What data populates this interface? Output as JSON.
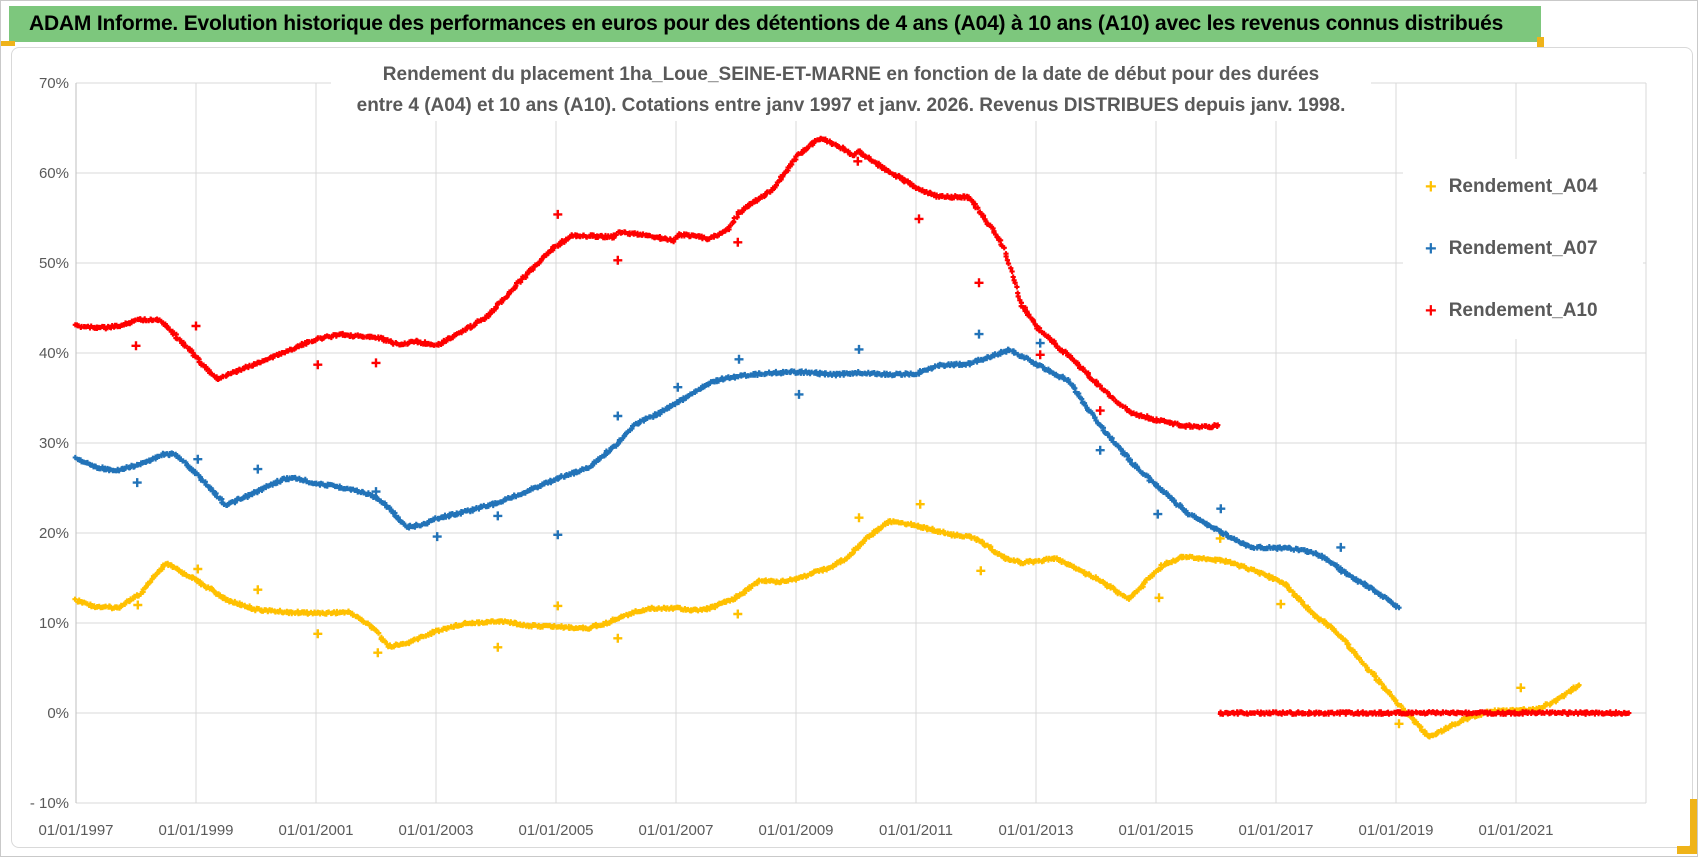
{
  "banner": {
    "title": "ADAM Informe. Evolution historique des performances en euros pour des détentions de 4 ans (A04) à 10 ans (A10) avec les revenus connus distribués"
  },
  "colors": {
    "banner_green": "#7DC77D",
    "accent_gold": "#EFB319",
    "grid": "#D9D9D9",
    "axis": "#BFBFBF",
    "text_gray": "#595959",
    "a04": "#FFC000",
    "a07": "#2273B8",
    "a10": "#FE0000"
  },
  "chart_data": {
    "type": "scatter",
    "marker": "plus",
    "title_line1": "Rendement du placement 1ha_Loue_SEINE-ET-MARNE  en fonction de la date de début pour des durées",
    "title_line2": "entre 4 (A04) et 10 ans (A10). Cotations entre janv 1997 et janv. 2026. Revenus DISTRIBUES depuis janv. 1998.",
    "legend_position": "right",
    "grid": true,
    "ylim": [
      -10,
      70
    ],
    "xlim_years": [
      1997,
      2023.2
    ],
    "y_ticks": [
      "70%",
      "60%",
      "50%",
      "40%",
      "30%",
      "20%",
      "10%",
      "0%",
      "- 10%"
    ],
    "y_tick_values": [
      70,
      60,
      50,
      40,
      30,
      20,
      10,
      0,
      -10
    ],
    "x_ticks": [
      "01/01/1997",
      "01/01/1999",
      "01/01/2001",
      "01/01/2003",
      "01/01/2005",
      "01/01/2007",
      "01/01/2009",
      "01/01/2011",
      "01/01/2013",
      "01/01/2015",
      "01/01/2017",
      "01/01/2019",
      "01/01/2021"
    ],
    "x_tick_years": [
      1997,
      1999,
      2001,
      2003,
      2005,
      2007,
      2009,
      2011,
      2013,
      2015,
      2017,
      2019,
      2021
    ],
    "legend": [
      {
        "label": "Rendement_A04",
        "color": "#FFC000"
      },
      {
        "label": "Rendement_A07",
        "color": "#2273B8"
      },
      {
        "label": "Rendement_A10",
        "color": "#FE0000"
      }
    ],
    "series": [
      {
        "name": "Rendement_A04",
        "color": "#FFC000",
        "segments": [
          [
            [
              1997.0,
              12.5
            ],
            [
              1997.35,
              11.8
            ],
            [
              1997.7,
              11.7
            ],
            [
              1998.05,
              13.1
            ],
            [
              1998.5,
              16.6
            ],
            [
              1999.0,
              14.8
            ],
            [
              1999.5,
              12.6
            ],
            [
              2000.0,
              11.5
            ],
            [
              2000.5,
              11.2
            ],
            [
              2001.0,
              11.1
            ],
            [
              2001.55,
              11.2
            ],
            [
              2002.0,
              9.3
            ],
            [
              2002.2,
              7.4
            ],
            [
              2002.5,
              7.7
            ],
            [
              2003.0,
              9.1
            ],
            [
              2003.5,
              10.0
            ],
            [
              2004.1,
              10.2
            ],
            [
              2004.55,
              9.7
            ],
            [
              2005.0,
              9.6
            ],
            [
              2005.5,
              9.4
            ],
            [
              2005.8,
              9.9
            ],
            [
              2006.3,
              11.2
            ],
            [
              2006.55,
              11.6
            ],
            [
              2007.0,
              11.7
            ],
            [
              2007.3,
              11.4
            ],
            [
              2007.55,
              11.6
            ],
            [
              2008.0,
              12.8
            ],
            [
              2008.4,
              14.7
            ],
            [
              2008.7,
              14.6
            ],
            [
              2009.0,
              14.9
            ],
            [
              2009.5,
              16.0
            ],
            [
              2009.85,
              17.2
            ],
            [
              2010.1,
              19.0
            ],
            [
              2010.55,
              21.3
            ],
            [
              2010.9,
              21.0
            ],
            [
              2011.3,
              20.3
            ],
            [
              2011.6,
              19.8
            ],
            [
              2011.9,
              19.6
            ],
            [
              2012.1,
              19.0
            ],
            [
              2012.5,
              17.1
            ],
            [
              2012.75,
              16.7
            ],
            [
              2013.05,
              16.9
            ],
            [
              2013.3,
              17.2
            ],
            [
              2013.6,
              16.3
            ],
            [
              2014.1,
              14.6
            ],
            [
              2014.55,
              12.6
            ],
            [
              2015.1,
              16.4
            ],
            [
              2015.45,
              17.4
            ],
            [
              2015.75,
              17.2
            ],
            [
              2016.15,
              16.9
            ],
            [
              2016.65,
              15.8
            ],
            [
              2017.0,
              14.8
            ],
            [
              2017.15,
              14.3
            ],
            [
              2017.6,
              11.1
            ],
            [
              2018.0,
              9.1
            ],
            [
              2018.5,
              5.2
            ],
            [
              2019.05,
              1.0
            ],
            [
              2019.55,
              -2.7
            ],
            [
              2019.9,
              -1.5
            ],
            [
              2020.25,
              -0.4
            ],
            [
              2020.6,
              0.2
            ],
            [
              2021.0,
              0.3
            ],
            [
              2021.35,
              0.4
            ],
            [
              2021.65,
              1.3
            ],
            [
              2022.05,
              3.1
            ]
          ]
        ],
        "outliers": [
          [
            1998.03,
            12.0
          ],
          [
            1999.03,
            16.0
          ],
          [
            2000.03,
            13.7
          ],
          [
            2001.03,
            8.8
          ],
          [
            2002.03,
            6.7
          ],
          [
            2004.03,
            7.3
          ],
          [
            2005.03,
            11.9
          ],
          [
            2006.03,
            8.3
          ],
          [
            2008.03,
            11.0
          ],
          [
            2010.05,
            21.7
          ],
          [
            2011.07,
            23.2
          ],
          [
            2012.08,
            15.8
          ],
          [
            2015.05,
            12.8
          ],
          [
            2016.07,
            19.4
          ],
          [
            2017.08,
            12.1
          ],
          [
            2019.05,
            -1.2
          ],
          [
            2021.08,
            2.8
          ]
        ]
      },
      {
        "name": "Rendement_A07",
        "color": "#2273B8",
        "segments": [
          [
            [
              1997.0,
              28.3
            ],
            [
              1997.3,
              27.4
            ],
            [
              1997.65,
              26.9
            ],
            [
              1998.05,
              27.6
            ],
            [
              1998.45,
              28.7
            ],
            [
              1998.65,
              28.8
            ],
            [
              1999.1,
              26.0
            ],
            [
              1999.5,
              23.1
            ],
            [
              1999.9,
              24.2
            ],
            [
              2000.45,
              26.0
            ],
            [
              2000.65,
              26.1
            ],
            [
              2001.0,
              25.5
            ],
            [
              2001.5,
              25.0
            ],
            [
              2001.9,
              24.3
            ],
            [
              2002.2,
              22.9
            ],
            [
              2002.5,
              20.6
            ],
            [
              2002.8,
              21.0
            ],
            [
              2003.0,
              21.6
            ],
            [
              2003.5,
              22.4
            ],
            [
              2004.0,
              23.3
            ],
            [
              2004.5,
              24.6
            ],
            [
              2005.0,
              26.0
            ],
            [
              2005.55,
              27.3
            ],
            [
              2006.05,
              30.1
            ],
            [
              2006.35,
              32.2
            ],
            [
              2006.75,
              33.4
            ],
            [
              2007.05,
              34.6
            ],
            [
              2007.45,
              36.3
            ],
            [
              2007.7,
              37.0
            ],
            [
              2008.1,
              37.5
            ],
            [
              2008.6,
              37.8
            ],
            [
              2009.05,
              37.9
            ],
            [
              2009.65,
              37.6
            ],
            [
              2010.05,
              37.8
            ],
            [
              2010.6,
              37.6
            ],
            [
              2011.0,
              37.7
            ],
            [
              2011.35,
              38.6
            ],
            [
              2011.9,
              38.8
            ],
            [
              2012.05,
              39.2
            ],
            [
              2012.55,
              40.3
            ],
            [
              2013.03,
              38.7
            ],
            [
              2013.3,
              37.7
            ],
            [
              2013.55,
              36.9
            ],
            [
              2014.05,
              32.1
            ],
            [
              2014.6,
              27.8
            ],
            [
              2015.1,
              24.7
            ],
            [
              2015.55,
              22.1
            ],
            [
              2016.0,
              20.4
            ],
            [
              2016.45,
              18.8
            ],
            [
              2016.65,
              18.4
            ],
            [
              2017.2,
              18.3
            ],
            [
              2017.55,
              17.9
            ],
            [
              2017.8,
              17.3
            ],
            [
              2018.1,
              15.8
            ],
            [
              2018.6,
              13.8
            ],
            [
              2019.05,
              11.7
            ]
          ]
        ],
        "outliers": [
          [
            1998.02,
            25.6
          ],
          [
            1999.03,
            28.2
          ],
          [
            2000.03,
            27.1
          ],
          [
            2002.0,
            24.6
          ],
          [
            2003.02,
            19.6
          ],
          [
            2004.03,
            21.9
          ],
          [
            2005.03,
            19.8
          ],
          [
            2006.03,
            33.0
          ],
          [
            2007.03,
            36.2
          ],
          [
            2008.05,
            39.3
          ],
          [
            2009.05,
            35.4
          ],
          [
            2010.05,
            40.4
          ],
          [
            2012.05,
            42.1
          ],
          [
            2013.07,
            41.1
          ],
          [
            2014.07,
            29.2
          ],
          [
            2015.03,
            22.1
          ],
          [
            2016.08,
            22.7
          ],
          [
            2018.08,
            18.4
          ]
        ]
      },
      {
        "name": "Rendement_A10",
        "color": "#FE0000",
        "segments": [
          [
            [
              1997.0,
              43.0
            ],
            [
              1997.5,
              42.8
            ],
            [
              1997.8,
              43.1
            ],
            [
              1998.0,
              43.7
            ],
            [
              1998.4,
              43.7
            ],
            [
              1998.9,
              40.3
            ],
            [
              1999.1,
              38.8
            ],
            [
              1999.35,
              37.1
            ],
            [
              1999.7,
              38.0
            ],
            [
              2000.1,
              39.1
            ],
            [
              2000.65,
              40.6
            ],
            [
              2001.0,
              41.5
            ],
            [
              2001.4,
              42.1
            ],
            [
              2001.65,
              41.9
            ],
            [
              2002.05,
              41.7
            ],
            [
              2002.3,
              41.1
            ],
            [
              2002.45,
              41.0
            ],
            [
              2002.65,
              41.3
            ],
            [
              2002.9,
              41.0
            ],
            [
              2003.05,
              41.0
            ],
            [
              2003.3,
              41.9
            ],
            [
              2003.6,
              43.0
            ],
            [
              2003.9,
              44.3
            ],
            [
              2004.1,
              45.8
            ],
            [
              2004.4,
              48.0
            ],
            [
              2004.75,
              50.3
            ],
            [
              2005.0,
              51.9
            ],
            [
              2005.15,
              52.5
            ],
            [
              2005.25,
              53.0
            ],
            [
              2005.6,
              53.0
            ],
            [
              2005.95,
              52.9
            ],
            [
              2006.05,
              53.4
            ],
            [
              2006.5,
              53.1
            ],
            [
              2006.95,
              52.5
            ],
            [
              2007.05,
              53.2
            ],
            [
              2007.4,
              52.9
            ],
            [
              2007.55,
              52.6
            ],
            [
              2007.9,
              53.9
            ],
            [
              2008.05,
              55.6
            ],
            [
              2008.6,
              58.1
            ],
            [
              2009.05,
              62.1
            ],
            [
              2009.4,
              63.9
            ],
            [
              2009.65,
              63.2
            ],
            [
              2009.95,
              62.0
            ],
            [
              2010.05,
              62.4
            ],
            [
              2010.5,
              60.3
            ],
            [
              2010.8,
              59.2
            ],
            [
              2011.05,
              58.2
            ],
            [
              2011.35,
              57.4
            ],
            [
              2011.9,
              57.3
            ],
            [
              2012.05,
              55.8
            ],
            [
              2012.45,
              52.0
            ],
            [
              2012.75,
              45.5
            ],
            [
              2013.03,
              42.8
            ],
            [
              2013.35,
              40.8
            ],
            [
              2013.6,
              39.4
            ],
            [
              2014.03,
              36.5
            ],
            [
              2014.3,
              34.8
            ],
            [
              2014.6,
              33.3
            ],
            [
              2015.1,
              32.4
            ],
            [
              2015.5,
              31.9
            ],
            [
              2015.9,
              31.8
            ],
            [
              2016.03,
              32.0
            ]
          ],
          [
            [
              2016.06,
              0.0
            ],
            [
              2022.88,
              0.0
            ]
          ]
        ],
        "outliers": [
          [
            1998.0,
            40.8
          ],
          [
            1999.0,
            43.0
          ],
          [
            2001.03,
            38.7
          ],
          [
            2002.0,
            38.9
          ],
          [
            2005.03,
            55.4
          ],
          [
            2006.03,
            50.3
          ],
          [
            2008.03,
            52.3
          ],
          [
            2010.03,
            61.3
          ],
          [
            2011.05,
            54.9
          ],
          [
            2012.05,
            47.8
          ],
          [
            2013.07,
            39.8
          ],
          [
            2014.07,
            33.6
          ]
        ]
      }
    ]
  }
}
